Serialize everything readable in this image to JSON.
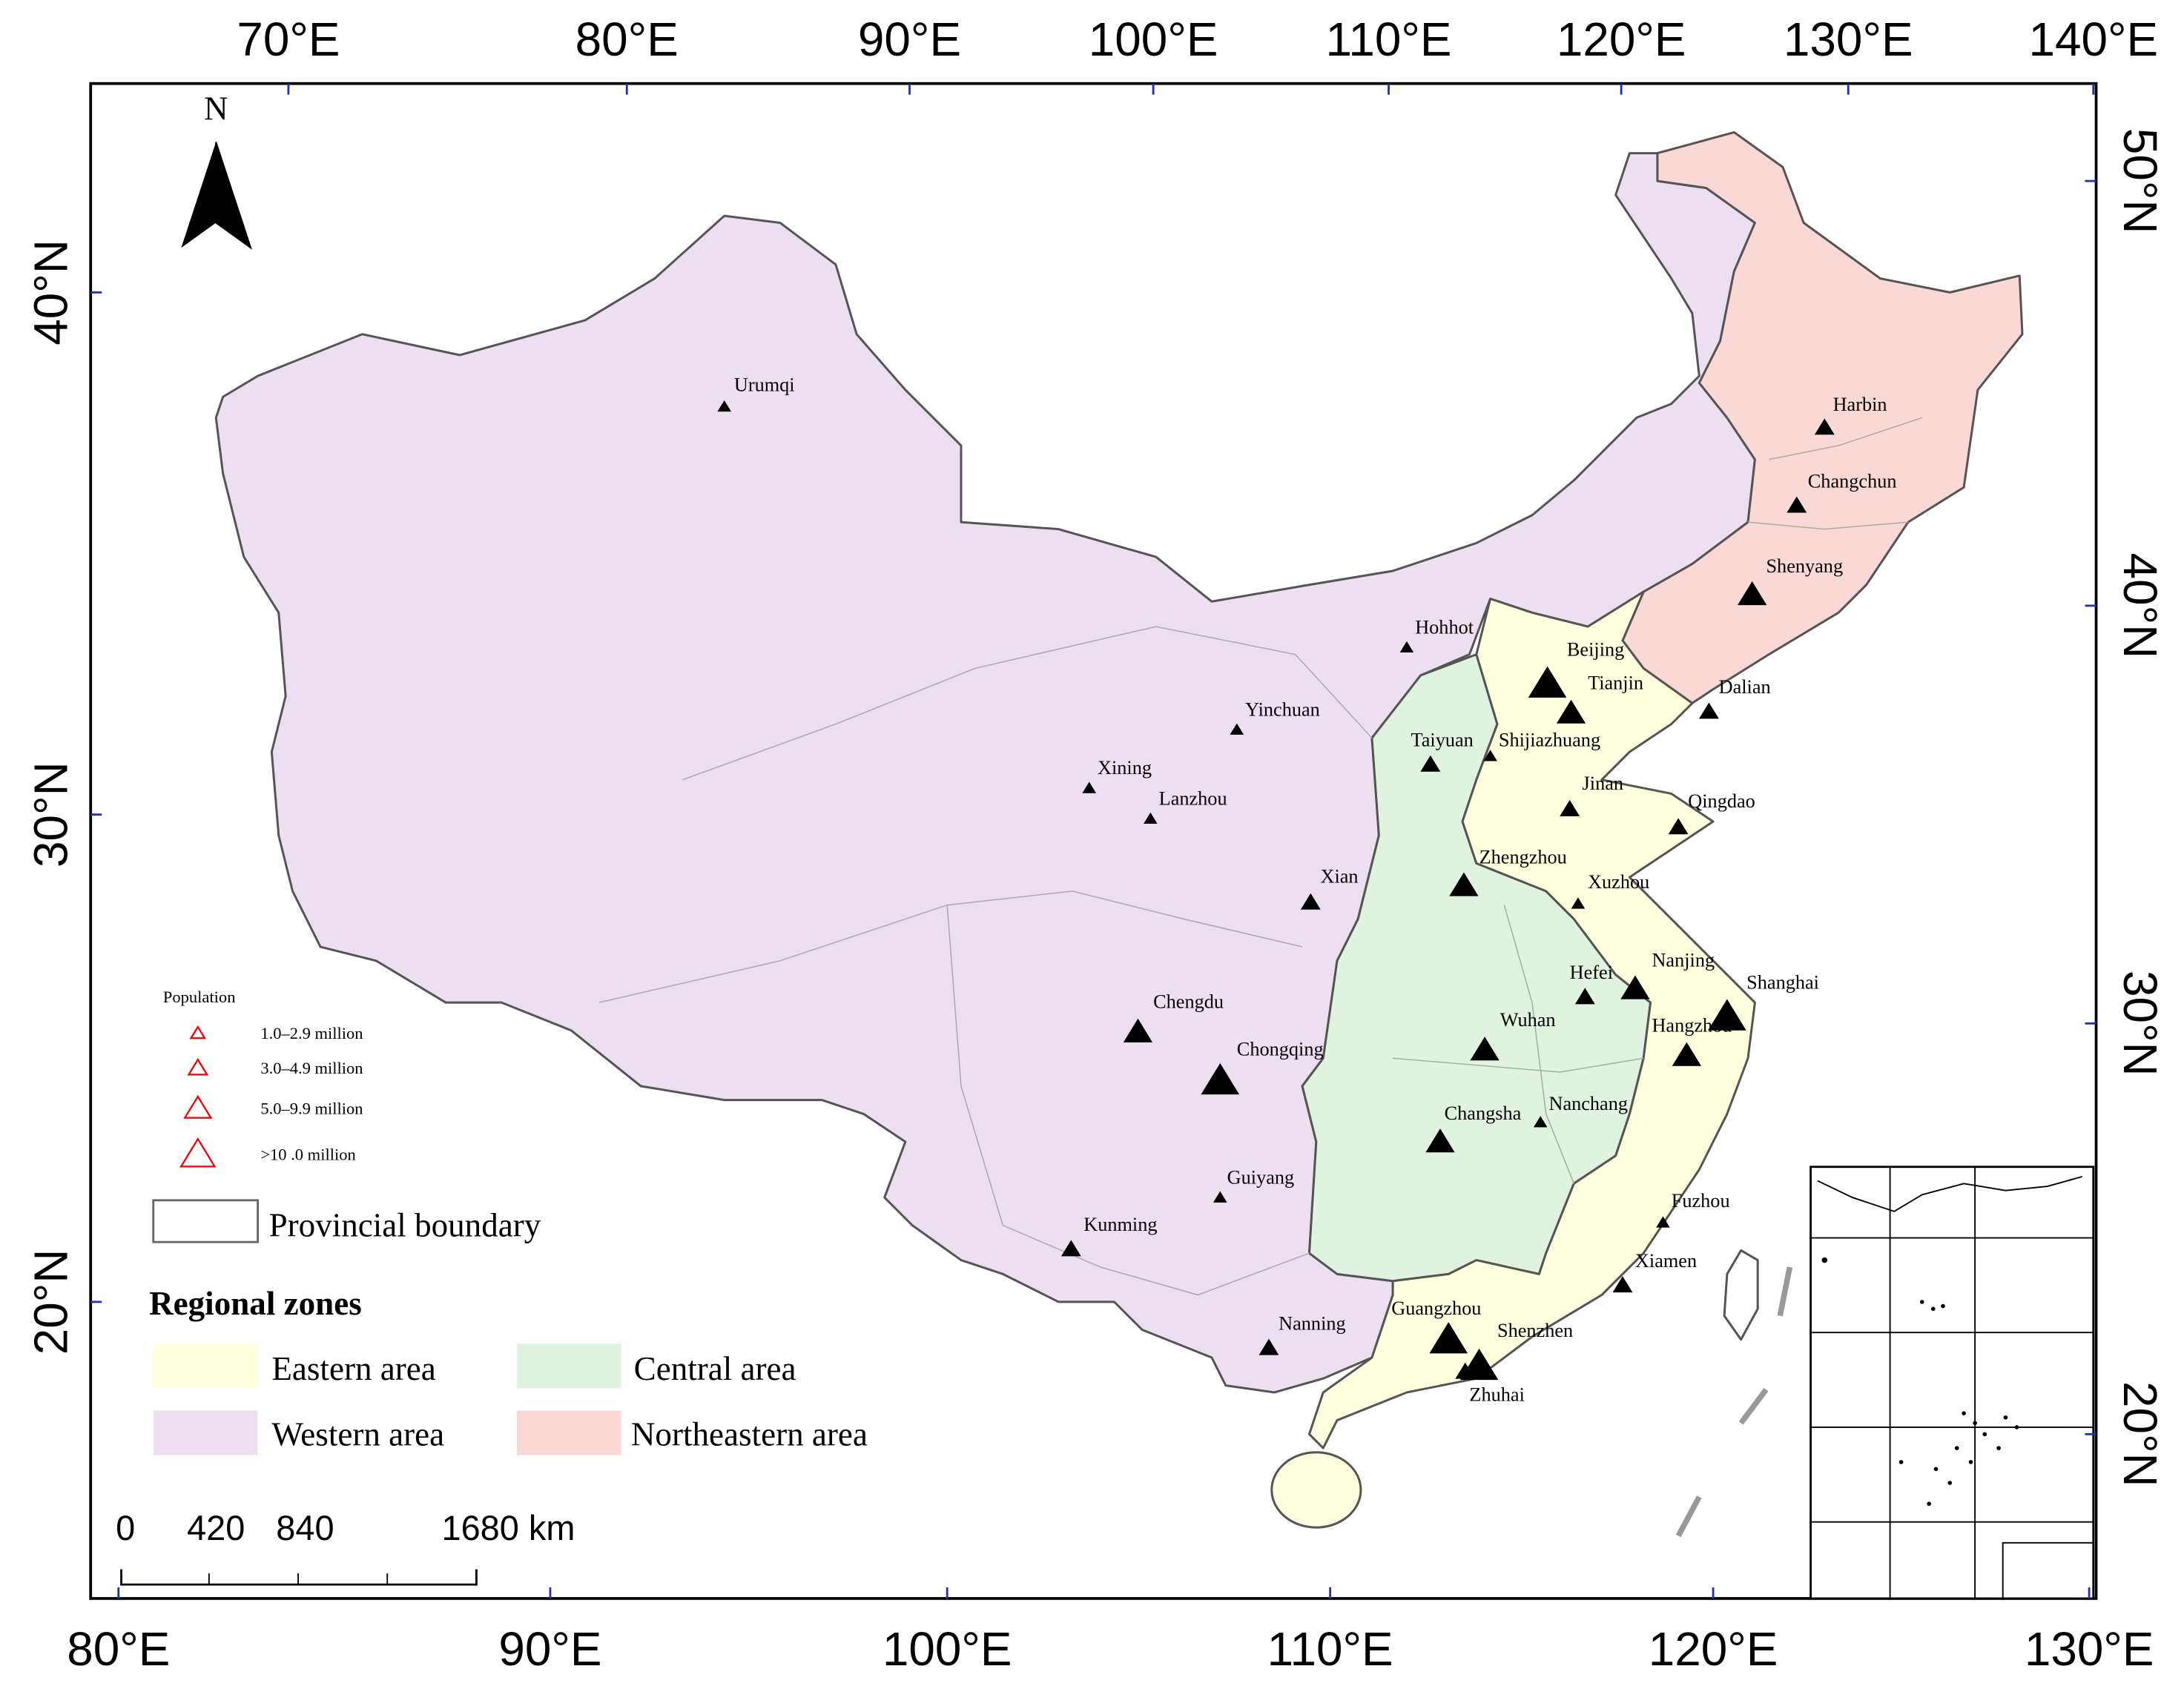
{
  "map": {
    "north": "N",
    "axes": {
      "top": [
        "70°E",
        "80°E",
        "90°E",
        "100°E",
        "110°E",
        "120°E",
        "130°E",
        "140°E"
      ],
      "bottom": [
        "80°E",
        "90°E",
        "100°E",
        "110°E",
        "120°E",
        "130°E"
      ],
      "left": [
        "40°N",
        "30°N",
        "20°N"
      ],
      "right": [
        "50°N",
        "40°N",
        "30°N",
        "20°N"
      ]
    },
    "legend": {
      "population_title": "Population",
      "classes": [
        {
          "label": "1.0–2.9 million",
          "cities": [
            "Urumqi",
            "Hohhot",
            "Yinchuan",
            "Shijiazhuang",
            "Xining",
            "Lanzhou",
            "Xuzhou",
            "Nanchang",
            "Guiyang",
            "Fuzhou"
          ]
        },
        {
          "label": "3.0–4.9 million",
          "cities": [
            "Harbin",
            "Changchun",
            "Dalian",
            "Taiyuan",
            "Jinan",
            "Qingdao",
            "Xian",
            "Hefei",
            "Kunming",
            "Xiamen",
            "Nanning",
            "Zhuhai"
          ]
        },
        {
          "label": "5.0–9.9 million",
          "cities": [
            "Shenyang",
            "Tianjin",
            "Zhengzhou",
            "Nanjing",
            "Chengdu",
            "Wuhan",
            "Hangzhou",
            "Changsha"
          ]
        },
        {
          "label": ">10 .0 million",
          "cities": [
            "Beijing",
            "Shanghai",
            "Chongqing",
            "Guangzhou",
            "Shenzhen"
          ]
        }
      ],
      "boundary": "Provincial boundary",
      "zones_title": "Regional zones",
      "zones": [
        "Eastern area",
        "Central area",
        "Western area",
        "Northeastern area"
      ]
    },
    "scale_bar": [
      "0",
      "420",
      "840",
      "1680 km"
    ]
  }
}
